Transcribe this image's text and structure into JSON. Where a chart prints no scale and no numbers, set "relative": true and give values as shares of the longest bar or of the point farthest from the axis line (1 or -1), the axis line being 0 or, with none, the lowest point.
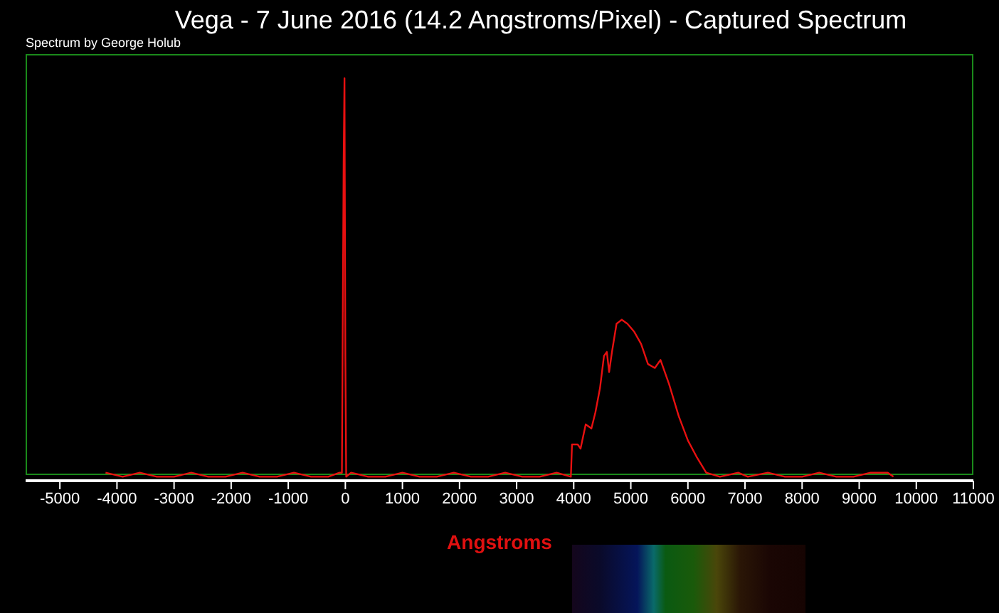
{
  "chart_data": {
    "type": "line",
    "title": "Vega - 7 June 2016 (14.2 Angstroms/Pixel) - Captured Spectrum",
    "xlabel": "Angstroms",
    "relative": true,
    "marker": "none",
    "line_style": "solid",
    "annotations": [
      "Spectrum by George Holub"
    ],
    "xlim": [
      -5600,
      11000
    ],
    "xticks": [
      -5000,
      -4000,
      -3000,
      -2000,
      -1000,
      0,
      1000,
      2000,
      3000,
      4000,
      5000,
      6000,
      7000,
      8000,
      9000,
      10000,
      11000
    ],
    "x": [
      -4200,
      -3900,
      -3600,
      -3300,
      -3000,
      -2700,
      -2400,
      -2100,
      -1800,
      -1500,
      -1200,
      -900,
      -600,
      -300,
      -100,
      -60,
      -30,
      -15,
      0,
      15,
      100,
      400,
      700,
      1000,
      1300,
      1600,
      1900,
      2200,
      2500,
      2800,
      3100,
      3400,
      3700,
      3950,
      3970,
      4070,
      4120,
      4210,
      4310,
      4380,
      4460,
      4530,
      4580,
      4620,
      4670,
      4750,
      4840,
      4940,
      5060,
      5180,
      5300,
      5420,
      5520,
      5670,
      5840,
      6000,
      6150,
      6320,
      6560,
      6880,
      7050,
      7400,
      7700,
      8000,
      8300,
      8600,
      8900,
      9200,
      9500,
      9600
    ],
    "series": [
      {
        "color": "#e81010",
        "values": [
          0.02,
          0.01,
          0.02,
          0.01,
          0.01,
          0.02,
          0.01,
          0.01,
          0.02,
          0.01,
          0.01,
          0.02,
          0.01,
          0.01,
          0.02,
          0.02,
          0.79,
          1,
          0.31,
          0.01,
          0.02,
          0.01,
          0.01,
          0.02,
          0.01,
          0.01,
          0.02,
          0.01,
          0.01,
          0.02,
          0.01,
          0.01,
          0.02,
          0.01,
          0.09,
          0.09,
          0.08,
          0.14,
          0.13,
          0.17,
          0.23,
          0.31,
          0.32,
          0.27,
          0.32,
          0.39,
          0.4,
          0.39,
          0.37,
          0.34,
          0.29,
          0.28,
          0.3,
          0.24,
          0.16,
          0.1,
          0.06,
          0.02,
          0.01,
          0.02,
          0.01,
          0.02,
          0.01,
          0.01,
          0.02,
          0.01,
          0.01,
          0.02,
          0.02,
          0.01
        ]
      }
    ]
  }
}
